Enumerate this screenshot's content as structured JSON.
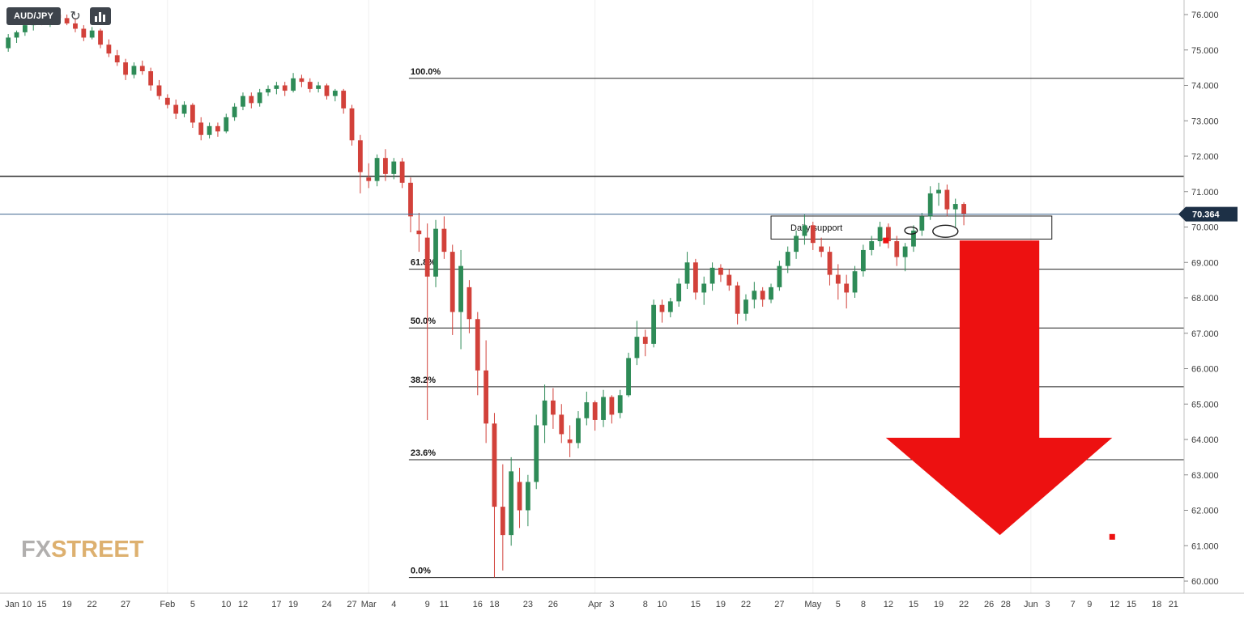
{
  "page": {
    "background": "#ffffff"
  },
  "toolbar": {
    "symbol_label": "AUD/JPY"
  },
  "icons": {
    "refresh_glyph": "↻"
  },
  "watermark": {
    "fx": "FX",
    "street": "STREET"
  },
  "colors": {
    "candle_up": "#2e8b57",
    "candle_down": "#d2413a",
    "fib_line": "#222222",
    "resistance_line": "#161616",
    "price_line": "#54779c",
    "price_badge_bg": "#1d3046",
    "price_badge_text": "#ffffff",
    "arrow_red": "#ed1111",
    "annotation_stroke": "#1d1d1d",
    "axis_text": "#3d3d3d",
    "axis_line": "#c0c0c0",
    "grid_line": "#efefef",
    "toolbar_bg": "#3e444c",
    "toolbar_text": "#ffffff",
    "watermark_fx": "#b1afae",
    "watermark_street": "#ddb06f"
  },
  "chart_data": {
    "type": "candlestick",
    "symbol": "AUD/JPY",
    "current_price": 70.364,
    "price_axis": {
      "min": 60,
      "max": 76,
      "step": 1,
      "decimals": 3
    },
    "total_slots": 140,
    "resistance_price": 71.43,
    "month_grid_slots": [
      19,
      43,
      70,
      96,
      122
    ],
    "fibonacci": {
      "start_slot": 48.3,
      "levels": [
        {
          "label": "100.0%",
          "price": 74.2
        },
        {
          "label": "61.8%",
          "price": 68.81
        },
        {
          "label": "50.0%",
          "price": 67.15
        },
        {
          "label": "38.2%",
          "price": 65.49
        },
        {
          "label": "23.6%",
          "price": 63.43
        },
        {
          "label": "0.0%",
          "price": 60.1
        }
      ]
    },
    "annotations": {
      "support_box": {
        "label": "Daily support",
        "slot_start": 91.5,
        "slot_end": 125,
        "price_top": 70.31,
        "price_bottom": 69.66
      },
      "ellipses": [
        {
          "slot": 108.2,
          "price": 69.9,
          "rx_slots": 0.75,
          "ry_price": 0.1
        },
        {
          "slot": 112.3,
          "price": 69.88,
          "rx_slots": 1.5,
          "ry_price": 0.17
        }
      ],
      "arrow": {
        "shaft_left_slot": 114,
        "shaft_right_slot": 123.5,
        "top_price": 69.62,
        "head_top_price": 64.05,
        "head_left_slot": 105.2,
        "head_right_slot": 132.2,
        "apex_slot": 118.8,
        "apex_price": 61.3
      },
      "handles": [
        {
          "slot": 105.2,
          "price": 69.62
        },
        {
          "slot": 132.2,
          "price": 61.25
        }
      ]
    },
    "x_ticks": [
      [
        "Jan 10",
        1.2
      ],
      [
        "15",
        4
      ],
      [
        "19",
        7
      ],
      [
        "22",
        10
      ],
      [
        "27",
        14
      ],
      [
        "Feb",
        19
      ],
      [
        "5",
        22
      ],
      [
        "10",
        26
      ],
      [
        "12",
        28
      ],
      [
        "17",
        32
      ],
      [
        "19",
        34
      ],
      [
        "24",
        38
      ],
      [
        "27",
        41
      ],
      [
        "Mar",
        43
      ],
      [
        "4",
        46
      ],
      [
        "9",
        50
      ],
      [
        "11",
        52
      ],
      [
        "16",
        56
      ],
      [
        "18",
        58
      ],
      [
        "23",
        62
      ],
      [
        "26",
        65
      ],
      [
        "Apr",
        70
      ],
      [
        "3",
        72
      ],
      [
        "8",
        76
      ],
      [
        "10",
        78
      ],
      [
        "15",
        82
      ],
      [
        "19",
        85
      ],
      [
        "22",
        88
      ],
      [
        "27",
        92
      ],
      [
        "May",
        96
      ],
      [
        "5",
        99
      ],
      [
        "8",
        102
      ],
      [
        "12",
        105
      ],
      [
        "15",
        108
      ],
      [
        "19",
        111
      ],
      [
        "22",
        114
      ],
      [
        "26",
        117
      ],
      [
        "28",
        119
      ],
      [
        "Jun",
        122
      ],
      [
        "3",
        124
      ],
      [
        "7",
        127
      ],
      [
        "9",
        129
      ],
      [
        "12",
        132
      ],
      [
        "15",
        134
      ],
      [
        "18",
        137
      ],
      [
        "21",
        139
      ]
    ],
    "candles": [
      [
        "Jan 10",
        75.05,
        75.45,
        74.95,
        75.35
      ],
      [
        "Jan 12",
        75.35,
        75.55,
        75.2,
        75.5
      ],
      [
        "Jan 13",
        75.5,
        75.75,
        75.4,
        75.7
      ],
      [
        "Jan 14",
        75.7,
        76.0,
        75.55,
        75.9
      ],
      [
        "Jan 15",
        75.9,
        76.1,
        75.7,
        75.8
      ],
      [
        "Jan 16",
        75.8,
        76.05,
        75.65,
        76.0
      ],
      [
        "Jan 17",
        76.0,
        76.15,
        75.8,
        75.9
      ],
      [
        "Jan 19",
        75.9,
        76.0,
        75.7,
        75.75
      ],
      [
        "Jan 20",
        75.75,
        75.9,
        75.5,
        75.6
      ],
      [
        "Jan 21",
        75.6,
        75.7,
        75.25,
        75.35
      ],
      [
        "Jan 22",
        75.35,
        75.65,
        75.3,
        75.55
      ],
      [
        "Jan 23",
        75.55,
        75.6,
        75.05,
        75.15
      ],
      [
        "Jan 24",
        75.15,
        75.3,
        74.8,
        74.9
      ],
      [
        "Jan 26",
        74.85,
        75.0,
        74.55,
        74.65
      ],
      [
        "Jan 27",
        74.65,
        74.75,
        74.15,
        74.3
      ],
      [
        "Jan 28",
        74.3,
        74.65,
        74.2,
        74.55
      ],
      [
        "Jan 29",
        74.55,
        74.7,
        74.3,
        74.4
      ],
      [
        "Jan 30",
        74.4,
        74.5,
        73.85,
        74.0
      ],
      [
        "Jan 31",
        74.0,
        74.15,
        73.6,
        73.7
      ],
      [
        "Feb 2",
        73.65,
        73.75,
        73.35,
        73.45
      ],
      [
        "Feb 3",
        73.45,
        73.6,
        73.05,
        73.2
      ],
      [
        "Feb 4",
        73.2,
        73.55,
        73.1,
        73.45
      ],
      [
        "Feb 5",
        73.45,
        73.5,
        72.8,
        72.95
      ],
      [
        "Feb 6",
        72.95,
        73.1,
        72.45,
        72.6
      ],
      [
        "Feb 7",
        72.6,
        72.95,
        72.5,
        72.85
      ],
      [
        "Feb 9",
        72.85,
        72.95,
        72.55,
        72.7
      ],
      [
        "Feb 10",
        72.7,
        73.2,
        72.65,
        73.1
      ],
      [
        "Feb 11",
        73.1,
        73.5,
        73.0,
        73.4
      ],
      [
        "Feb 12",
        73.4,
        73.8,
        73.3,
        73.7
      ],
      [
        "Feb 13",
        73.7,
        73.8,
        73.35,
        73.5
      ],
      [
        "Feb 14",
        73.5,
        73.9,
        73.4,
        73.8
      ],
      [
        "Feb 16",
        73.8,
        74.0,
        73.7,
        73.9
      ],
      [
        "Feb 17",
        73.9,
        74.1,
        73.75,
        74.0
      ],
      [
        "Feb 18",
        74.0,
        74.1,
        73.7,
        73.85
      ],
      [
        "Feb 19",
        73.85,
        74.35,
        73.8,
        74.2
      ],
      [
        "Feb 20",
        74.2,
        74.3,
        73.95,
        74.1
      ],
      [
        "Feb 21",
        74.1,
        74.2,
        73.8,
        73.9
      ],
      [
        "Feb 23",
        73.9,
        74.1,
        73.8,
        74.0
      ],
      [
        "Feb 24",
        74.0,
        74.05,
        73.6,
        73.7
      ],
      [
        "Feb 25",
        73.7,
        73.9,
        73.55,
        73.85
      ],
      [
        "Feb 26",
        73.85,
        73.9,
        73.2,
        73.35
      ],
      [
        "Feb 27",
        73.35,
        73.45,
        72.3,
        72.45
      ],
      [
        "Feb 28",
        72.45,
        72.6,
        70.95,
        71.55
      ],
      [
        "Mar 1",
        71.4,
        71.8,
        71.1,
        71.3
      ],
      [
        "Mar 2",
        71.3,
        72.05,
        71.15,
        71.95
      ],
      [
        "Mar 3",
        71.95,
        72.2,
        71.3,
        71.5
      ],
      [
        "Mar 4",
        71.5,
        71.95,
        71.35,
        71.85
      ],
      [
        "Mar 5",
        71.85,
        71.95,
        71.1,
        71.25
      ],
      [
        "Mar 6",
        71.25,
        71.4,
        69.85,
        70.3
      ],
      [
        "Mar 8",
        69.9,
        70.4,
        69.3,
        69.8
      ],
      [
        "Mar 9",
        69.7,
        70.1,
        64.55,
        68.6
      ],
      [
        "Mar 10",
        68.6,
        70.2,
        68.3,
        69.95
      ],
      [
        "Mar 11",
        69.95,
        70.3,
        69.1,
        69.3
      ],
      [
        "Mar 12",
        69.3,
        69.5,
        66.95,
        67.6
      ],
      [
        "Mar 13",
        67.6,
        69.35,
        66.55,
        68.9
      ],
      [
        "Mar 15",
        68.3,
        68.5,
        67.0,
        67.4
      ],
      [
        "Mar 16",
        67.4,
        67.6,
        65.25,
        65.95
      ],
      [
        "Mar 17",
        65.95,
        66.8,
        63.9,
        64.45
      ],
      [
        "Mar 18",
        64.45,
        64.75,
        60.1,
        62.1
      ],
      [
        "Mar 19",
        62.1,
        63.3,
        60.3,
        61.3
      ],
      [
        "Mar 20",
        61.3,
        63.5,
        61.0,
        63.1
      ],
      [
        "Mar 22",
        62.8,
        63.2,
        61.5,
        62.0
      ],
      [
        "Mar 23",
        62.0,
        63.0,
        61.55,
        62.8
      ],
      [
        "Mar 24",
        62.8,
        64.7,
        62.6,
        64.4
      ],
      [
        "Mar 25",
        64.4,
        65.55,
        63.9,
        65.1
      ],
      [
        "Mar 26",
        65.1,
        65.45,
        64.3,
        64.7
      ],
      [
        "Mar 27",
        64.7,
        65.0,
        63.9,
        64.15
      ],
      [
        "Mar 29",
        64.0,
        64.4,
        63.5,
        63.9
      ],
      [
        "Mar 30",
        63.9,
        64.8,
        63.75,
        64.6
      ],
      [
        "Mar 31",
        64.6,
        65.35,
        64.4,
        65.05
      ],
      [
        "Apr 1",
        65.05,
        65.1,
        64.25,
        64.55
      ],
      [
        "Apr 2",
        64.55,
        65.4,
        64.35,
        65.2
      ],
      [
        "Apr 3",
        65.2,
        65.25,
        64.45,
        64.7
      ],
      [
        "Apr 5",
        64.75,
        65.4,
        64.6,
        65.25
      ],
      [
        "Apr 6",
        65.25,
        66.45,
        65.2,
        66.3
      ],
      [
        "Apr 7",
        66.3,
        67.35,
        66.1,
        66.9
      ],
      [
        "Apr 8",
        66.9,
        67.1,
        66.35,
        66.7
      ],
      [
        "Apr 9",
        66.7,
        67.95,
        66.6,
        67.8
      ],
      [
        "Apr 10",
        67.8,
        67.95,
        67.3,
        67.6
      ],
      [
        "Apr 12",
        67.6,
        68.0,
        67.45,
        67.9
      ],
      [
        "Apr 13",
        67.9,
        68.55,
        67.75,
        68.4
      ],
      [
        "Apr 14",
        68.4,
        69.3,
        68.25,
        69.0
      ],
      [
        "Apr 15",
        69.0,
        69.1,
        67.95,
        68.15
      ],
      [
        "Apr 16",
        68.15,
        68.6,
        67.8,
        68.4
      ],
      [
        "Apr 17",
        68.4,
        69.0,
        68.2,
        68.85
      ],
      [
        "Apr 19",
        68.85,
        68.95,
        68.45,
        68.65
      ],
      [
        "Apr 20",
        68.65,
        68.8,
        68.2,
        68.35
      ],
      [
        "Apr 21",
        68.35,
        68.45,
        67.25,
        67.55
      ],
      [
        "Apr 22",
        67.55,
        68.1,
        67.35,
        67.95
      ],
      [
        "Apr 23",
        67.95,
        68.45,
        67.7,
        68.2
      ],
      [
        "Apr 24",
        68.2,
        68.3,
        67.75,
        67.95
      ],
      [
        "Apr 26",
        67.95,
        68.4,
        67.85,
        68.3
      ],
      [
        "Apr 27",
        68.3,
        69.05,
        68.2,
        68.9
      ],
      [
        "Apr 28",
        68.9,
        69.45,
        68.7,
        69.3
      ],
      [
        "Apr 29",
        69.3,
        69.9,
        69.1,
        69.75
      ],
      [
        "Apr 30",
        69.75,
        70.35,
        69.5,
        70.05
      ],
      [
        "May 1",
        70.05,
        70.15,
        69.35,
        69.55
      ],
      [
        "May 3",
        69.45,
        69.7,
        69.15,
        69.3
      ],
      [
        "May 4",
        69.3,
        69.45,
        68.35,
        68.65
      ],
      [
        "May 5",
        68.65,
        68.95,
        67.95,
        68.4
      ],
      [
        "May 6",
        68.4,
        68.65,
        67.7,
        68.15
      ],
      [
        "May 7",
        68.15,
        68.9,
        68.0,
        68.75
      ],
      [
        "May 8",
        68.75,
        69.5,
        68.6,
        69.35
      ],
      [
        "May 10",
        69.35,
        69.75,
        69.2,
        69.6
      ],
      [
        "May 11",
        69.6,
        70.15,
        69.45,
        70.0
      ],
      [
        "May 12",
        70.0,
        70.1,
        69.4,
        69.6
      ],
      [
        "May 13",
        69.6,
        69.75,
        68.9,
        69.15
      ],
      [
        "May 14",
        69.15,
        69.55,
        68.75,
        69.45
      ],
      [
        "May 15",
        69.45,
        70.05,
        69.3,
        69.9
      ],
      [
        "May 17",
        69.9,
        70.4,
        69.75,
        70.3
      ],
      [
        "May 18",
        70.3,
        71.15,
        70.2,
        70.95
      ],
      [
        "May 19",
        70.95,
        71.25,
        70.6,
        71.05
      ],
      [
        "May 20",
        71.05,
        71.2,
        70.3,
        70.5
      ],
      [
        "May 21",
        70.5,
        70.8,
        70.0,
        70.65
      ],
      [
        "May 22",
        70.65,
        70.7,
        70.05,
        70.364
      ]
    ]
  }
}
